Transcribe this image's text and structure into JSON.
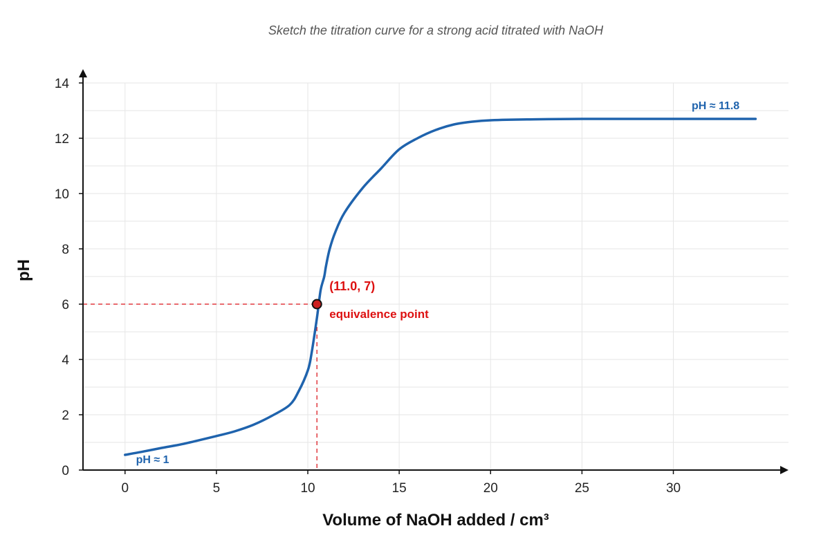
{
  "chart_data": {
    "type": "line",
    "title": "Sketch the titration curve for a strong acid titrated with NaOH",
    "xlabel": "Volume of NaOH added / cm³",
    "ylabel": "pH",
    "xlim": [
      -2.3,
      36.3
    ],
    "ylim": [
      0,
      14
    ],
    "x_ticks": [
      0,
      5,
      10,
      15,
      20,
      25,
      30
    ],
    "y_ticks": [
      0,
      2,
      4,
      6,
      8,
      10,
      12,
      14
    ],
    "grid": true,
    "series": [
      {
        "color": "#1f63ad",
        "x": [
          0,
          1,
          2,
          3,
          4,
          5,
          6,
          7,
          8,
          9,
          9.5,
          10.0,
          10.2,
          10.5,
          10.7,
          10.9,
          11.0,
          11.2,
          11.5,
          12,
          13,
          14,
          15,
          16,
          17,
          18,
          19,
          20,
          22,
          25,
          30,
          34.5
        ],
        "y": [
          0.55,
          0.67,
          0.8,
          0.92,
          1.07,
          1.23,
          1.4,
          1.63,
          1.95,
          2.35,
          2.85,
          3.6,
          4.2,
          5.5,
          6.5,
          7.0,
          7.4,
          8.0,
          8.6,
          9.3,
          10.2,
          10.9,
          11.6,
          12.0,
          12.3,
          12.5,
          12.6,
          12.65,
          12.68,
          12.7,
          12.7,
          12.7
        ]
      }
    ],
    "guide_point": {
      "x": 10.5,
      "y": 6
    },
    "annotations": {
      "coordinates": "(11.0, 7)",
      "equivalence": "equivalence point",
      "start": "pH ≈ 1",
      "end": "pH ≈ 11.8"
    }
  }
}
